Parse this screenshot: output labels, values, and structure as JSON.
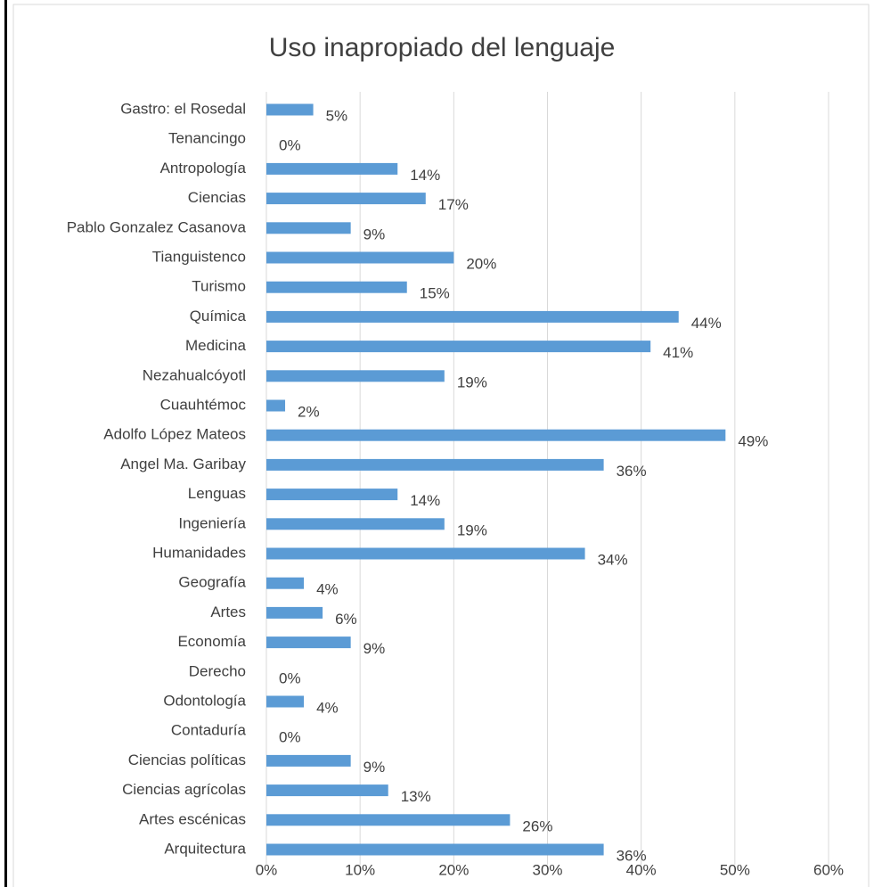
{
  "chart_data": {
    "type": "bar",
    "orientation": "horizontal",
    "title": "Uso inapropiado del lenguaje",
    "categories": [
      "Gastro: el Rosedal",
      "Tenancingo",
      "Antropología",
      "Ciencias",
      "Pablo Gonzalez Casanova",
      "Tianguistenco",
      "Turismo",
      "Química",
      "Medicina",
      "Nezahualcóyotl",
      "Cuauhtémoc",
      "Adolfo López Mateos",
      "Angel Ma. Garibay",
      "Lenguas",
      "Ingeniería",
      "Humanidades",
      "Geografía",
      "Artes",
      "Economía",
      "Derecho",
      "Odontología",
      "Contaduría",
      "Ciencias políticas",
      "Ciencias agrícolas",
      "Artes escénicas",
      "Arquitectura"
    ],
    "values": [
      5,
      0,
      14,
      17,
      9,
      20,
      15,
      44,
      41,
      19,
      2,
      49,
      36,
      14,
      19,
      34,
      4,
      6,
      9,
      0,
      4,
      0,
      9,
      13,
      26,
      36
    ],
    "value_labels": [
      "5%",
      "0%",
      "14%",
      "17%",
      "9%",
      "20%",
      "15%",
      "44%",
      "41%",
      "19%",
      "2%",
      "49%",
      "36%",
      "14%",
      "19%",
      "34%",
      "4%",
      "6%",
      "9%",
      "0%",
      "4%",
      "0%",
      "9%",
      "13%",
      "26%",
      "36%"
    ],
    "color": "#5b9bd5",
    "xlim": [
      0,
      60
    ],
    "xticks": [
      {
        "value": 0,
        "label": "0%"
      },
      {
        "value": 10,
        "label": "10%"
      },
      {
        "value": 20,
        "label": "20%"
      },
      {
        "value": 30,
        "label": "30%"
      },
      {
        "value": 40,
        "label": "40%"
      },
      {
        "value": 50,
        "label": "50%"
      },
      {
        "value": 60,
        "label": "60%"
      }
    ],
    "grid": true
  }
}
